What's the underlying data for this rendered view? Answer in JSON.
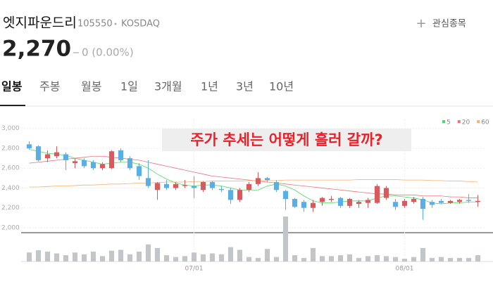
{
  "header": {
    "title": "엣지파운드리",
    "code": "105550",
    "market": "KOSDAQ",
    "watch": "관심종목",
    "price": "2,270",
    "change": "0 (0.00%)"
  },
  "tabs": [
    "일봉",
    "주봉",
    "월봉",
    "1일",
    "3개월",
    "1년",
    "3년",
    "10년"
  ],
  "chart_data": {
    "type": "candlestick",
    "annotation": "주가 추세는 어떻게 흘러 갈까?",
    "categories": [
      null,
      null,
      null,
      null,
      null,
      null,
      null,
      null,
      null,
      null,
      null,
      null,
      null,
      null,
      null,
      null,
      null,
      null,
      "07/01",
      null,
      null,
      null,
      null,
      null,
      null,
      null,
      null,
      null,
      null,
      null,
      null,
      null,
      null,
      null,
      null,
      null,
      null,
      null,
      null,
      null,
      null,
      "08/01",
      null,
      null,
      null,
      null,
      null,
      null,
      null,
      null
    ],
    "open": [
      2840,
      2820,
      2700,
      2720,
      2740,
      2650,
      2680,
      2660,
      2600,
      2600,
      2780,
      2700,
      2620,
      2500,
      2380,
      2440,
      2400,
      2420,
      2420,
      2380,
      2460,
      2390,
      2380,
      2280,
      2380,
      2440,
      2500,
      2460,
      2370,
      2290,
      2260,
      2200,
      2260,
      2280,
      2300,
      2220,
      2240,
      2250,
      2250,
      2300,
      2260,
      2220,
      2260,
      2290,
      2260,
      2270,
      2250,
      2260,
      2280,
      2260
    ],
    "high": [
      2870,
      2830,
      2780,
      2820,
      2760,
      2700,
      2700,
      2680,
      2660,
      2780,
      2800,
      2720,
      2650,
      2680,
      2460,
      2480,
      2460,
      2480,
      2520,
      2470,
      2470,
      2420,
      2400,
      2400,
      2460,
      2560,
      2510,
      2480,
      2380,
      2300,
      2280,
      2280,
      2310,
      2320,
      2310,
      2300,
      2280,
      2300,
      2440,
      2420,
      2290,
      2290,
      2310,
      2310,
      2280,
      2290,
      2280,
      2290,
      2340,
      2330
    ],
    "low": [
      2790,
      2670,
      2660,
      2700,
      2580,
      2600,
      2600,
      2580,
      2580,
      2590,
      2660,
      2580,
      2480,
      2400,
      2280,
      2380,
      2380,
      2400,
      2300,
      2360,
      2380,
      2360,
      2240,
      2260,
      2360,
      2420,
      2460,
      2360,
      2180,
      2200,
      2160,
      2160,
      2220,
      2260,
      2200,
      2200,
      2200,
      2200,
      2240,
      2280,
      2180,
      2200,
      2240,
      2080,
      2200,
      2240,
      2240,
      2240,
      2250,
      2210
    ],
    "close": [
      2800,
      2680,
      2740,
      2760,
      2680,
      2670,
      2620,
      2600,
      2640,
      2770,
      2680,
      2600,
      2520,
      2420,
      2450,
      2400,
      2440,
      2430,
      2400,
      2460,
      2400,
      2380,
      2280,
      2380,
      2440,
      2500,
      2480,
      2380,
      2290,
      2210,
      2200,
      2250,
      2300,
      2290,
      2220,
      2290,
      2260,
      2280,
      2420,
      2400,
      2210,
      2270,
      2290,
      2190,
      2230,
      2250,
      2270,
      2280,
      2270,
      2270
    ],
    "volume": [
      20,
      25,
      22,
      18,
      14,
      20,
      16,
      22,
      12,
      24,
      26,
      16,
      22,
      38,
      30,
      14,
      10,
      12,
      20,
      16,
      18,
      16,
      32,
      26,
      10,
      8,
      28,
      10,
      100,
      14,
      8,
      30,
      12,
      12,
      14,
      16,
      8,
      12,
      14,
      12,
      10,
      6,
      10,
      30,
      8,
      10,
      8,
      8,
      8,
      14
    ],
    "series": [
      {
        "name": "5",
        "color": "#4cd964",
        "values": [
          2790,
          2770,
          2750,
          2740,
          2730,
          2700,
          2680,
          2660,
          2640,
          2650,
          2660,
          2660,
          2640,
          2600,
          2540,
          2490,
          2450,
          2430,
          2420,
          2430,
          2430,
          2420,
          2400,
          2380,
          2380,
          2380,
          2420,
          2440,
          2420,
          2380,
          2320,
          2270,
          2250,
          2250,
          2260,
          2270,
          2270,
          2270,
          2300,
          2320,
          2320,
          2310,
          2300,
          2280,
          2250,
          2240,
          2250,
          2250,
          2260,
          2260
        ]
      },
      {
        "name": "20",
        "color": "#e8747c",
        "values": [
          2650,
          2660,
          2670,
          2680,
          2690,
          2700,
          2710,
          2720,
          2720,
          2710,
          2700,
          2690,
          2680,
          2660,
          2640,
          2620,
          2600,
          2580,
          2560,
          2540,
          2520,
          2510,
          2500,
          2490,
          2480,
          2470,
          2460,
          2450,
          2440,
          2430,
          2420,
          2410,
          2400,
          2390,
          2380,
          2370,
          2360,
          2350,
          2340,
          2340,
          2330,
          2330,
          2330,
          2320,
          2320,
          2320,
          2310,
          2310,
          2300,
          2300
        ]
      },
      {
        "name": "60",
        "color": "#f5b26b",
        "values": [
          2410,
          2410,
          2415,
          2420,
          2420,
          2425,
          2430,
          2430,
          2435,
          2440,
          2440,
          2445,
          2450,
          2450,
          2455,
          2460,
          2460,
          2460,
          2465,
          2465,
          2470,
          2470,
          2470,
          2470,
          2475,
          2475,
          2475,
          2475,
          2480,
          2480,
          2480,
          2480,
          2480,
          2480,
          2480,
          2480,
          2485,
          2485,
          2485,
          2485,
          2485,
          2480,
          2480,
          2480,
          2475,
          2475,
          2470,
          2470,
          2465,
          2460
        ]
      }
    ],
    "up_color": "#d9595d",
    "down_color": "#5aaee6",
    "volume_color": "#c3c6c9",
    "ylim": [
      1950,
      3090
    ],
    "yticks": [
      {
        "value": 2000,
        "label": "2,000"
      },
      {
        "value": 2200,
        "label": "2,200"
      },
      {
        "value": 2400,
        "label": "2,400"
      },
      {
        "value": 2600,
        "label": "2,600"
      },
      {
        "value": 2800,
        "label": "2,800"
      },
      {
        "value": 3000,
        "label": "3,000"
      }
    ],
    "grid": true
  }
}
